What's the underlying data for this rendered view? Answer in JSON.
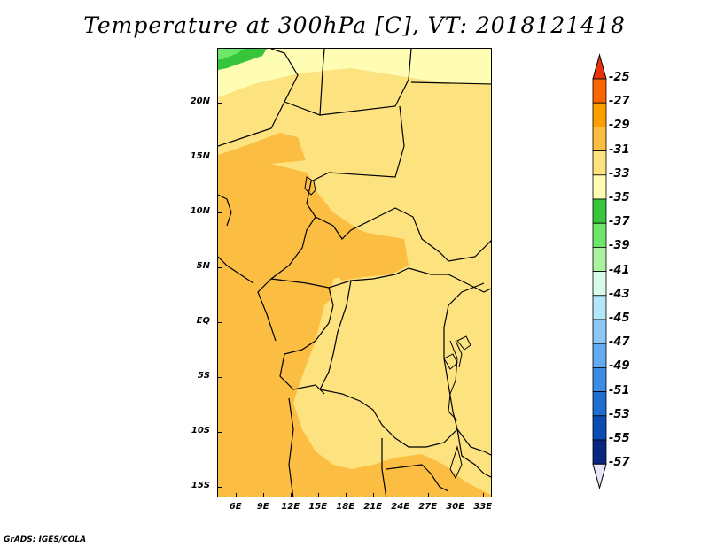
{
  "title": "Temperature at 300hPa [C], VT: 2018121418",
  "credit": "GrADS: IGES/COLA",
  "map": {
    "lat_labels": [
      "20N",
      "15N",
      "10N",
      "5N",
      "EQ",
      "5S",
      "10S",
      "15S"
    ],
    "lat_values": [
      20,
      15,
      10,
      5,
      0,
      -5,
      -10,
      -15
    ],
    "lon_labels": [
      "6E",
      "9E",
      "12E",
      "15E",
      "18E",
      "21E",
      "24E",
      "27E",
      "30E",
      "33E"
    ],
    "lon_values": [
      6,
      9,
      12,
      15,
      18,
      21,
      24,
      27,
      30,
      33
    ],
    "lon_range": [
      4,
      34
    ],
    "lat_range": [
      -16,
      25
    ]
  },
  "colorbar": {
    "labels": [
      "-25",
      "-27",
      "-29",
      "-31",
      "-33",
      "-35",
      "-37",
      "-39",
      "-41",
      "-43",
      "-45",
      "-47",
      "-49",
      "-51",
      "-53",
      "-55",
      "-57"
    ],
    "colors": {
      "top_arrow": "#e8320a",
      "segments": [
        "#fa6401",
        "#fca000",
        "#fbbe42",
        "#fde37f",
        "#fffcb4",
        "#37c63b",
        "#6ee66a",
        "#a8f2a0",
        "#d8fae8",
        "#b4e6fa",
        "#8cc8f5",
        "#64aaf0",
        "#3c8ce6",
        "#1e6ed2",
        "#0a4bb4",
        "#082880"
      ],
      "bottom_arrow": "#e6e6fa"
    }
  }
}
